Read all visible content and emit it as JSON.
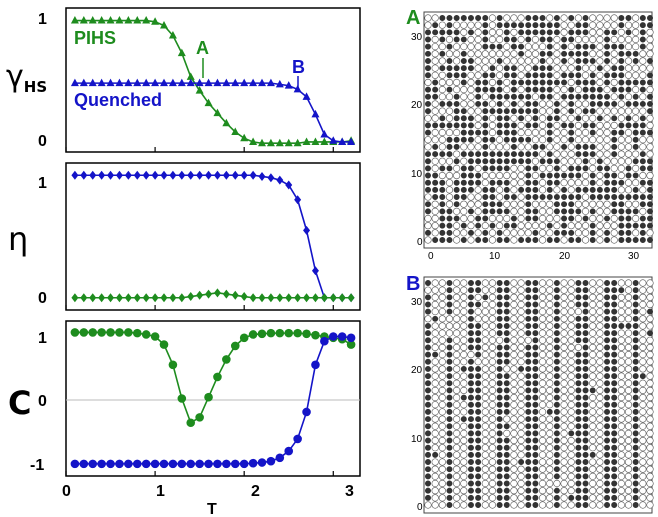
{
  "chart_data": [
    {
      "type": "line",
      "panel": "gamma",
      "ylabel": "γ",
      "ylabel_sub": "HS",
      "yticks": [
        "0",
        "1"
      ],
      "ylim": [
        -0.05,
        1.1
      ],
      "xlim": [
        0,
        3.3
      ],
      "x": [
        0.1,
        0.2,
        0.3,
        0.4,
        0.5,
        0.6,
        0.7,
        0.8,
        0.9,
        1.0,
        1.1,
        1.2,
        1.3,
        1.4,
        1.5,
        1.6,
        1.7,
        1.8,
        1.9,
        2.0,
        2.1,
        2.2,
        2.3,
        2.4,
        2.5,
        2.6,
        2.7,
        2.8,
        2.9,
        3.0,
        3.1,
        3.2
      ],
      "series": [
        {
          "name": "PIHS",
          "color": "#1e8c1e",
          "marker": "triangle",
          "values": [
            1,
            1,
            1,
            1,
            1,
            1,
            1,
            1,
            1,
            0.99,
            0.96,
            0.88,
            0.74,
            0.55,
            0.44,
            0.34,
            0.26,
            0.18,
            0.11,
            0.06,
            0.03,
            0.02,
            0.02,
            0.02,
            0.02,
            0.02,
            0.03,
            0.03,
            0.03,
            0.03,
            0.03,
            0.04
          ]
        },
        {
          "name": "Quenched",
          "color": "#1414c8",
          "marker": "triangle",
          "values": [
            0.5,
            0.5,
            0.5,
            0.5,
            0.5,
            0.5,
            0.5,
            0.5,
            0.5,
            0.5,
            0.5,
            0.5,
            0.5,
            0.5,
            0.5,
            0.5,
            0.5,
            0.5,
            0.5,
            0.5,
            0.5,
            0.5,
            0.5,
            0.49,
            0.48,
            0.45,
            0.39,
            0.25,
            0.09,
            0.04,
            0.03,
            0.03
          ]
        }
      ],
      "annotations": [
        {
          "text": "A",
          "x": 1.4,
          "y": 0.52,
          "color": "#1e8c1e"
        },
        {
          "text": "B",
          "x": 2.7,
          "y": 0.44,
          "color": "#1414c8"
        }
      ]
    },
    {
      "type": "line",
      "panel": "eta",
      "ylabel": "η",
      "yticks": [
        "0",
        "1"
      ],
      "ylim": [
        -0.1,
        1.1
      ],
      "xlim": [
        0,
        3.3
      ],
      "x": [
        0.1,
        0.2,
        0.3,
        0.4,
        0.5,
        0.6,
        0.7,
        0.8,
        0.9,
        1.0,
        1.1,
        1.2,
        1.3,
        1.4,
        1.5,
        1.6,
        1.7,
        1.8,
        1.9,
        2.0,
        2.1,
        2.2,
        2.3,
        2.4,
        2.5,
        2.6,
        2.7,
        2.8,
        2.9,
        3.0,
        3.1,
        3.2
      ],
      "series": [
        {
          "name": "",
          "color": "#1414c8",
          "marker": "diamond",
          "values": [
            1,
            1,
            1,
            1,
            1,
            1,
            1,
            1,
            1,
            1,
            1,
            1,
            1,
            1,
            1,
            1,
            1,
            1,
            1,
            1,
            1,
            0.99,
            0.98,
            0.96,
            0.92,
            0.8,
            0.55,
            0.22,
            0,
            0,
            0,
            0
          ]
        },
        {
          "name": "",
          "color": "#1e8c1e",
          "marker": "diamond",
          "values": [
            0,
            0,
            0,
            0,
            0,
            0,
            0,
            0,
            0,
            0,
            0,
            0,
            0,
            0.01,
            0.02,
            0.03,
            0.04,
            0.03,
            0.02,
            0.01,
            0,
            0,
            0,
            0,
            0,
            0,
            0,
            0,
            0,
            0,
            0,
            0
          ]
        }
      ]
    },
    {
      "type": "line",
      "panel": "C",
      "ylabel": "C",
      "xlabel": "T",
      "yticks": [
        "-1",
        "0",
        "1"
      ],
      "xticks": [
        "0",
        "1",
        "2",
        "3"
      ],
      "ylim": [
        -1.15,
        1.15
      ],
      "xlim": [
        0,
        3.3
      ],
      "x": [
        0.1,
        0.2,
        0.3,
        0.4,
        0.5,
        0.6,
        0.7,
        0.8,
        0.9,
        1.0,
        1.1,
        1.2,
        1.3,
        1.4,
        1.5,
        1.6,
        1.7,
        1.8,
        1.9,
        2.0,
        2.1,
        2.2,
        2.3,
        2.4,
        2.5,
        2.6,
        2.7,
        2.8,
        2.9,
        3.0,
        3.1,
        3.2
      ],
      "series": [
        {
          "name": "",
          "color": "#1e8c1e",
          "marker": "circle",
          "values": [
            0.98,
            0.98,
            0.98,
            0.98,
            0.98,
            0.98,
            0.98,
            0.97,
            0.95,
            0.92,
            0.8,
            0.5,
            0.0,
            -0.36,
            -0.28,
            0.02,
            0.32,
            0.58,
            0.78,
            0.9,
            0.95,
            0.96,
            0.97,
            0.97,
            0.97,
            0.97,
            0.96,
            0.94,
            0.92,
            0.9,
            0.88,
            0.8
          ]
        },
        {
          "name": "",
          "color": "#1414c8",
          "marker": "circle",
          "values": [
            -0.97,
            -0.97,
            -0.97,
            -0.97,
            -0.97,
            -0.97,
            -0.97,
            -0.97,
            -0.97,
            -0.97,
            -0.97,
            -0.97,
            -0.97,
            -0.97,
            -0.97,
            -0.97,
            -0.97,
            -0.97,
            -0.97,
            -0.97,
            -0.96,
            -0.95,
            -0.93,
            -0.88,
            -0.78,
            -0.6,
            -0.2,
            0.5,
            0.85,
            0.92,
            0.92,
            0.9
          ]
        }
      ]
    },
    {
      "type": "scatter",
      "panel": "lattice-A",
      "label": "A",
      "label_color": "#1e8c1e",
      "xticks": [
        "0",
        "10",
        "20",
        "30"
      ],
      "yticks": [
        "0",
        "10",
        "20",
        "30"
      ],
      "xlim": [
        -1,
        33
      ],
      "ylim": [
        -1,
        33
      ],
      "grid_size": 32,
      "pattern": "random",
      "seed": 7,
      "empty_fraction": 0.45
    },
    {
      "type": "scatter",
      "panel": "lattice-B",
      "label": "B",
      "label_color": "#1414c8",
      "xticks": [
        "0",
        "10",
        "20",
        "30"
      ],
      "yticks": [
        "0",
        "10",
        "20",
        "30"
      ],
      "xlim": [
        -1,
        33
      ],
      "ylim": [
        -1,
        33
      ],
      "grid_size": 32,
      "pattern": "stripes",
      "seed": 11,
      "white_columns": [
        1,
        2,
        4,
        5,
        8,
        9,
        12,
        13,
        16,
        17,
        19,
        20,
        23,
        24,
        27,
        28,
        30,
        31
      ]
    }
  ]
}
